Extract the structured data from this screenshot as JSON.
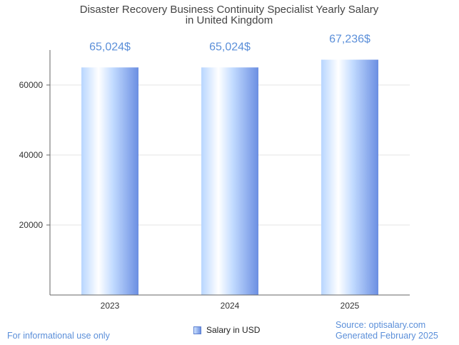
{
  "chart_data": {
    "type": "bar",
    "title": [
      "Disaster Recovery Business Continuity Specialist Yearly Salary",
      "in United Kingdom"
    ],
    "categories": [
      "2023",
      "2024",
      "2025"
    ],
    "series": [
      {
        "name": "Salary in USD",
        "values": [
          65024,
          65024,
          67236
        ]
      }
    ],
    "data_labels": [
      "65,024$",
      "65,024$",
      "67,236$"
    ],
    "y_ticks": [
      20000,
      40000,
      60000
    ],
    "ylim": [
      0,
      70000
    ],
    "grid": true,
    "legend": "bottom-center"
  },
  "colors": {
    "bar_light": "#eaf3ff",
    "bar_mid": "#b5d3ff",
    "bar_dark": "#6b8ee2",
    "label": "#5b8fd9",
    "footer": "#5b8fd9",
    "grid": "#e6e6e6",
    "axis": "#666666"
  },
  "footer": {
    "left": "For informational use only",
    "source": "Source: optisalary.com",
    "generated": "Generated February 2025"
  }
}
